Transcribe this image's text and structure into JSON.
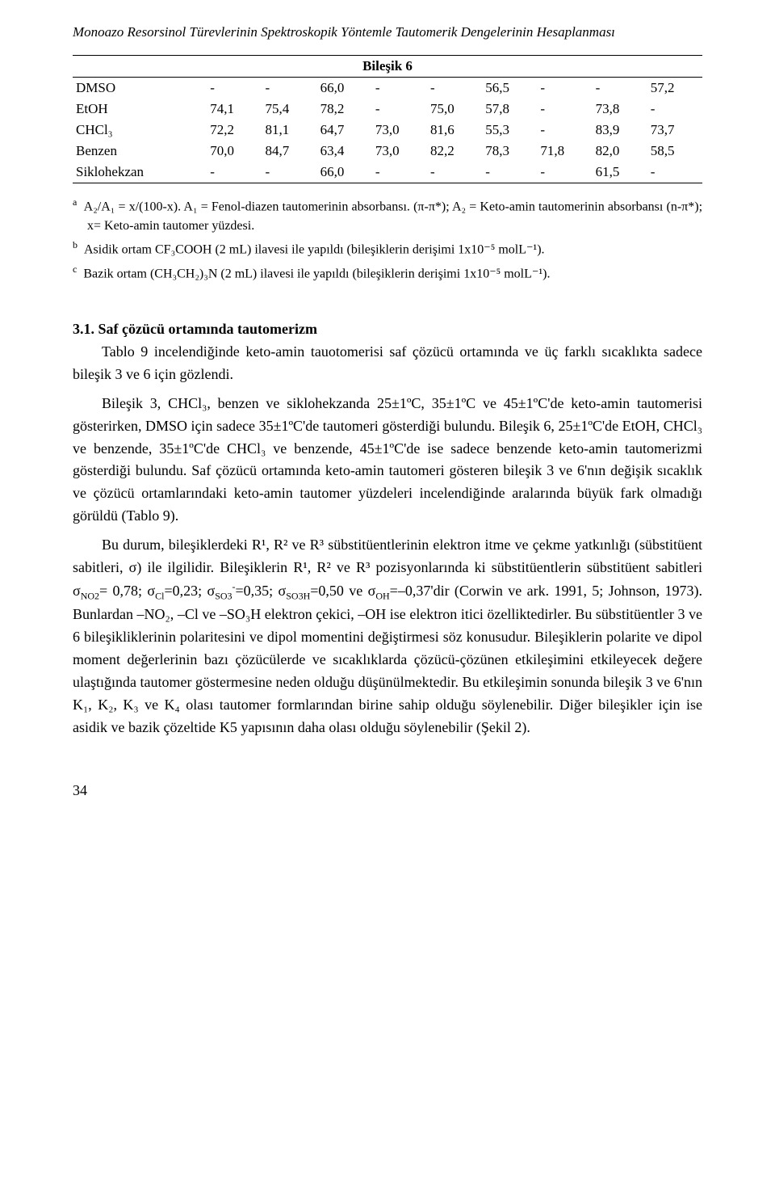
{
  "header": {
    "title": "Monoazo Resorsinol Türevlerinin Spektroskopik Yöntemle Tautomerik Dengelerinin Hesaplanması"
  },
  "table": {
    "compound_header": "Bileşik 6",
    "rows": [
      {
        "label": "DMSO",
        "c1": "-",
        "c2": "-",
        "c3": "66,0",
        "c4": "-",
        "c5": "-",
        "c6": "56,5",
        "c7": "-",
        "c8": "-",
        "c9": "57,2"
      },
      {
        "label": "EtOH",
        "c1": "74,1",
        "c2": "75,4",
        "c3": "78,2",
        "c4": "-",
        "c5": "75,0",
        "c6": "57,8",
        "c7": "-",
        "c8": "73,8",
        "c9": "-"
      },
      {
        "label": "CHCl₃",
        "c1": "72,2",
        "c2": "81,1",
        "c3": "64,7",
        "c4": "73,0",
        "c5": "81,6",
        "c6": "55,3",
        "c7": "-",
        "c8": "83,9",
        "c9": "73,7"
      },
      {
        "label": "Benzen",
        "c1": "70,0",
        "c2": "84,7",
        "c3": "63,4",
        "c4": "73,0",
        "c5": "82,2",
        "c6": "78,3",
        "c7": "71,8",
        "c8": "82,0",
        "c9": "58,5"
      },
      {
        "label": "Siklohekzan",
        "c1": "-",
        "c2": "-",
        "c3": "66,0",
        "c4": "-",
        "c5": "-",
        "c6": "-",
        "c7": "-",
        "c8": "61,5",
        "c9": "-"
      }
    ]
  },
  "footnotes": {
    "a": "A₂/A₁ = x/(100-x). A₁ = Fenol-diazen tautomerinin absorbansı. (π-π*); A₂ = Keto-amin tautomerinin absorbansı (n-π*); x= Keto-amin tautomer yüzdesi.",
    "b": "Asidik ortam CF₃COOH (2 mL) ilavesi ile yapıldı (bileşiklerin derişimi 1x10⁻⁵ molL⁻¹).",
    "c": "Bazik ortam (CH₃CH₂)₃N (2 mL) ilavesi ile yapıldı (bileşiklerin derişimi 1x10⁻⁵ molL⁻¹)."
  },
  "section": {
    "heading": "3.1. Saf çözücü ortamında tautomerizm",
    "p1": "Tablo 9 incelendiğinde keto-amin tauotomerisi saf çözücü ortamında ve üç farklı sıcaklıkta sadece bileşik 3 ve 6 için gözlendi.",
    "p2": "Bileşik 3, CHCl₃, benzen ve siklohekzanda 25±1ºC, 35±1ºC ve 45±1ºC'de keto-amin tautomerisi gösterirken, DMSO için sadece 35±1ºC'de tautomeri gösterdiği bulundu. Bileşik 6, 25±1ºC'de EtOH, CHCl₃ ve benzende, 35±1ºC'de CHCl₃ ve benzende, 45±1ºC'de ise sadece benzende keto-amin tautomerizmi gösterdiği bulundu. Saf çözücü ortamında keto-amin tautomeri gösteren bileşik 3 ve 6'nın değişik sıcaklık ve çözücü ortamlarındaki keto-amin tautomer yüzdeleri incelendiğinde aralarında büyük fark olmadığı görüldü (Tablo 9).",
    "p3_part1": "Bu durum, bileşiklerdeki R¹, R² ve R³ sübstitüentlerinin elektron itme ve çekme yatkınlığı (sübstitüent sabitleri, σ) ile ilgilidir. Bileşiklerin R¹, R² ve R³ pozisyonlarında ki sübstitüentlerin sübstitüent sabitleri σ",
    "p3_NO2": "NO2",
    "p3_part2": "= 0,78; σ",
    "p3_Cl": "Cl",
    "p3_part3": "=0,23; σ",
    "p3_SO3": "SO3",
    "p3_SO3sup": "-",
    "p3_part4": "=0,35; σ",
    "p3_SO3H": "SO3H",
    "p3_part5": "=0,50 ve σ",
    "p3_OH": "OH",
    "p3_part6": "=–0,37'dir (Corwin ve ark. 1991, 5; Johnson, 1973). Bunlardan –NO₂, –Cl ve –SO₃H elektron çekici, –OH ise elektron itici özelliktedirler. Bu sübstitüentler 3 ve 6 bileşikliklerinin polaritesini ve dipol momentini değiştirmesi söz konusudur. Bileşiklerin polarite ve dipol moment değerlerinin bazı çözücülerde ve sıcaklıklarda çözücü-çözünen etkileşimini etkileyecek değere ulaştığında tautomer göstermesine neden olduğu düşünülmektedir. Bu etkileşimin sonunda bileşik 3 ve 6'nın K₁, K₂, K₃ ve K₄ olası tautomer formlarından birine sahip olduğu söylenebilir. Diğer bileşikler için ise asidik ve bazik çözeltide K5 yapısının daha olası olduğu söylenebilir (Şekil 2)."
  },
  "page_number": "34"
}
